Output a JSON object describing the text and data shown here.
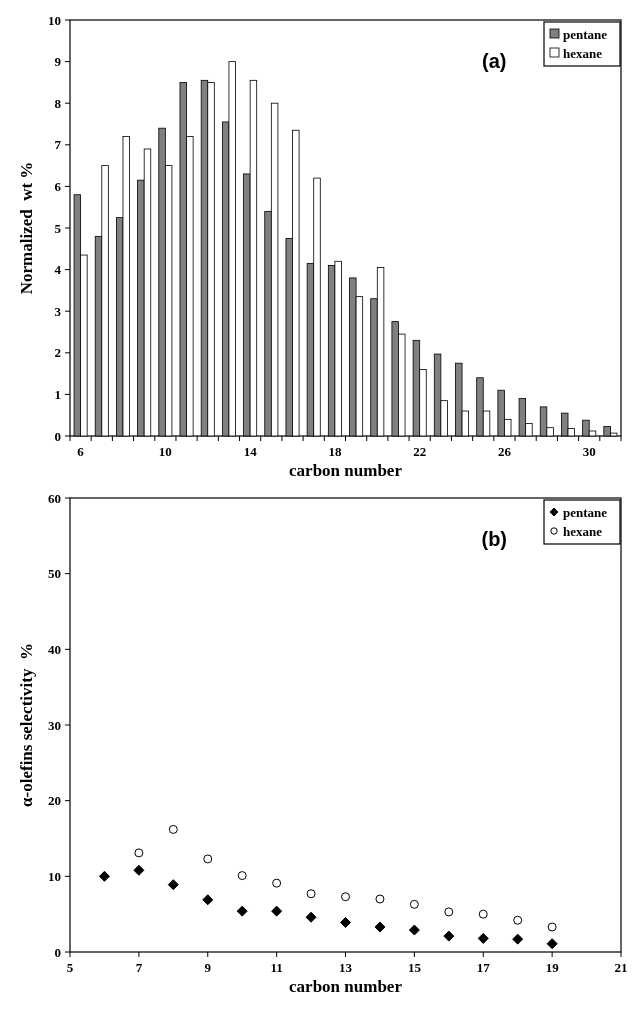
{
  "chart_data": [
    {
      "type": "bar",
      "xlabel": "carbon number",
      "ylabel": "Normalized  wt %",
      "annotations": [
        "(a)"
      ],
      "categories": [
        "6",
        null,
        null,
        null,
        "10",
        null,
        null,
        null,
        "14",
        null,
        null,
        null,
        "18",
        null,
        null,
        null,
        "22",
        null,
        null,
        null,
        "26",
        null,
        null,
        null,
        "30",
        null
      ],
      "series": [
        {
          "name": "pentane",
          "color": "#808080",
          "values": [
            5.8,
            4.8,
            5.25,
            6.15,
            7.4,
            8.5,
            8.55,
            7.55,
            6.3,
            5.4,
            4.75,
            4.15,
            4.1,
            3.8,
            3.3,
            2.75,
            2.3,
            1.97,
            1.75,
            1.4,
            1.1,
            0.9,
            0.7,
            0.55,
            0.38,
            0.23
          ]
        },
        {
          "name": "hexane",
          "color": "#ffffff",
          "values": [
            4.35,
            6.5,
            7.2,
            6.9,
            6.5,
            7.2,
            8.5,
            9.0,
            8.55,
            8.0,
            7.35,
            6.2,
            4.2,
            3.35,
            4.05,
            2.45,
            1.6,
            0.85,
            0.6,
            0.6,
            0.4,
            0.3,
            0.2,
            0.18,
            0.12,
            0.07
          ]
        }
      ],
      "ylim": [
        0,
        10
      ],
      "yticks": [
        0,
        1,
        2,
        3,
        4,
        5,
        6,
        7,
        8,
        9,
        10
      ],
      "legend": "top right",
      "grid": false
    },
    {
      "type": "scatter",
      "xlabel": "carbon number",
      "ylabel": "α-olefins selectivity  %",
      "annotations": [
        "(b)"
      ],
      "series": [
        {
          "name": "pentane",
          "color": "#000000",
          "marker": "diamond",
          "x": [
            6,
            7,
            8,
            9,
            10,
            11,
            12,
            13,
            14,
            15,
            16,
            17,
            18,
            19
          ],
          "values": [
            10,
            10.8,
            8.9,
            6.9,
            5.4,
            5.4,
            4.6,
            3.9,
            3.3,
            2.9,
            2.1,
            1.8,
            1.7,
            1.1
          ]
        },
        {
          "name": "hexane",
          "color": "#ffffff",
          "marker": "circle",
          "x": [
            7,
            8,
            9,
            10,
            11,
            12,
            13,
            14,
            15,
            16,
            17,
            18,
            19
          ],
          "values": [
            13.1,
            16.2,
            12.3,
            10.1,
            9.1,
            7.7,
            7.3,
            7.0,
            6.3,
            5.3,
            5.0,
            4.2,
            3.3
          ]
        }
      ],
      "xlim": [
        5,
        21
      ],
      "xticks": [
        5,
        7,
        9,
        11,
        13,
        15,
        17,
        19,
        21
      ],
      "ylim": [
        0,
        60
      ],
      "yticks": [
        0,
        10,
        20,
        30,
        40,
        50,
        60
      ],
      "legend": "top right",
      "grid": false
    }
  ]
}
